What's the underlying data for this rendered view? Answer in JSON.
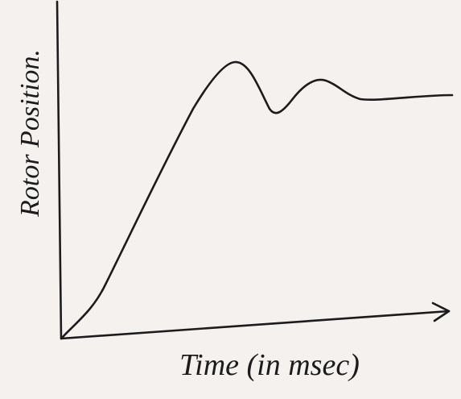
{
  "axes": {
    "y_label": "Rotor Position.",
    "x_label": "Time (in msec)"
  }
}
